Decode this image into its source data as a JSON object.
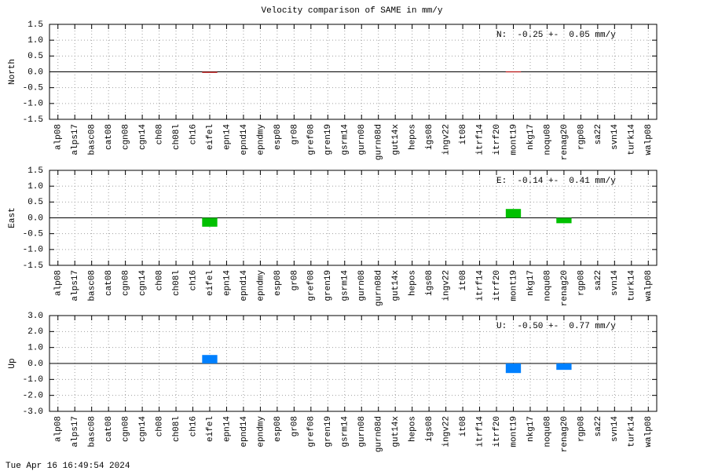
{
  "title": "Velocity comparison of SAME in mm/y",
  "timestamp": "Tue Apr 16 16:49:54 2024",
  "chart_data": [
    {
      "type": "bar",
      "ylabel": "North",
      "annotation": "N:  -0.25 +-  0.05 mm/y",
      "color": "#c00000",
      "categories": [
        "alp08",
        "alps17",
        "basc08",
        "cat08",
        "cgn08",
        "cgn14",
        "ch08",
        "ch08l",
        "ch16",
        "eifel",
        "epn14",
        "epnd14",
        "epndmy",
        "esp08",
        "gr08",
        "gref08",
        "gren19",
        "gsrm14",
        "gurn08",
        "gurn08d",
        "gut14x",
        "hepos",
        "igs08",
        "ingv22",
        "it08",
        "itrf14",
        "itrf20",
        "mont19",
        "nkg17",
        "noqu08",
        "renag20",
        "rgp08",
        "sa22",
        "svn14",
        "turk14",
        "walp08"
      ],
      "values": [
        null,
        null,
        null,
        null,
        null,
        null,
        null,
        null,
        null,
        -0.03,
        null,
        null,
        null,
        null,
        null,
        null,
        null,
        null,
        null,
        null,
        null,
        null,
        null,
        null,
        null,
        null,
        null,
        0.01,
        null,
        null,
        null,
        null,
        null,
        null,
        null,
        null
      ],
      "ylim": [
        -1.5,
        1.5
      ],
      "yticks": [
        1.5,
        {
          "value": 1,
          "label": "1.0"
        },
        0.5,
        {
          "value": 0,
          "label": "0.0"
        },
        -0.5,
        {
          "value": -1,
          "label": "-1.0"
        },
        -1.5
      ],
      "grid": true
    },
    {
      "type": "bar",
      "ylabel": "East",
      "annotation": "E:  -0.14 +-  0.41 mm/y",
      "color": "#00c000",
      "categories": [
        "alp08",
        "alps17",
        "basc08",
        "cat08",
        "cgn08",
        "cgn14",
        "ch08",
        "ch08l",
        "ch16",
        "eifel",
        "epn14",
        "epnd14",
        "epndmy",
        "esp08",
        "gr08",
        "gref08",
        "gren19",
        "gsrm14",
        "gurn08",
        "gurn08d",
        "gut14x",
        "hepos",
        "igs08",
        "ingv22",
        "it08",
        "itrf14",
        "itrf20",
        "mont19",
        "nkg17",
        "noqu08",
        "renag20",
        "rgp08",
        "sa22",
        "svn14",
        "turk14",
        "walp08"
      ],
      "values": [
        null,
        null,
        null,
        null,
        null,
        null,
        null,
        null,
        null,
        -0.28,
        null,
        null,
        null,
        null,
        null,
        null,
        null,
        null,
        null,
        null,
        null,
        null,
        null,
        null,
        null,
        null,
        null,
        0.28,
        null,
        null,
        -0.17,
        null,
        null,
        null,
        null,
        null
      ],
      "ylim": [
        -1.5,
        1.5
      ],
      "yticks": [
        1.5,
        {
          "value": 1,
          "label": "1.0"
        },
        0.5,
        {
          "value": 0,
          "label": "0.0"
        },
        -0.5,
        {
          "value": -1,
          "label": "-1.0"
        },
        -1.5
      ],
      "grid": true
    },
    {
      "type": "bar",
      "ylabel": "Up",
      "annotation": "U:  -0.50 +-  0.77 mm/y",
      "color": "#0080ff",
      "categories": [
        "alp08",
        "alps17",
        "basc08",
        "cat08",
        "cgn08",
        "cgn14",
        "ch08",
        "ch08l",
        "ch16",
        "eifel",
        "epn14",
        "epnd14",
        "epndmy",
        "esp08",
        "gr08",
        "gref08",
        "gren19",
        "gsrm14",
        "gurn08",
        "gurn08d",
        "gut14x",
        "hepos",
        "igs08",
        "ingv22",
        "it08",
        "itrf14",
        "itrf20",
        "mont19",
        "nkg17",
        "noqu08",
        "renag20",
        "rgp08",
        "sa22",
        "svn14",
        "turk14",
        "walp08"
      ],
      "values": [
        null,
        null,
        null,
        null,
        null,
        null,
        null,
        null,
        null,
        0.53,
        null,
        null,
        null,
        null,
        null,
        null,
        null,
        null,
        null,
        null,
        null,
        null,
        null,
        null,
        null,
        null,
        null,
        -0.6,
        null,
        null,
        -0.4,
        null,
        null,
        null,
        null,
        null
      ],
      "ylim": [
        -3,
        3
      ],
      "yticks": [
        {
          "value": 3,
          "label": "3.0"
        },
        {
          "value": 2,
          "label": "2.0"
        },
        {
          "value": 1,
          "label": "1.0"
        },
        {
          "value": 0,
          "label": "0.0"
        },
        {
          "value": -1,
          "label": "-1.0"
        },
        {
          "value": -2,
          "label": "-2.0"
        },
        {
          "value": -3,
          "label": "-3.0"
        }
      ],
      "grid": true
    }
  ]
}
